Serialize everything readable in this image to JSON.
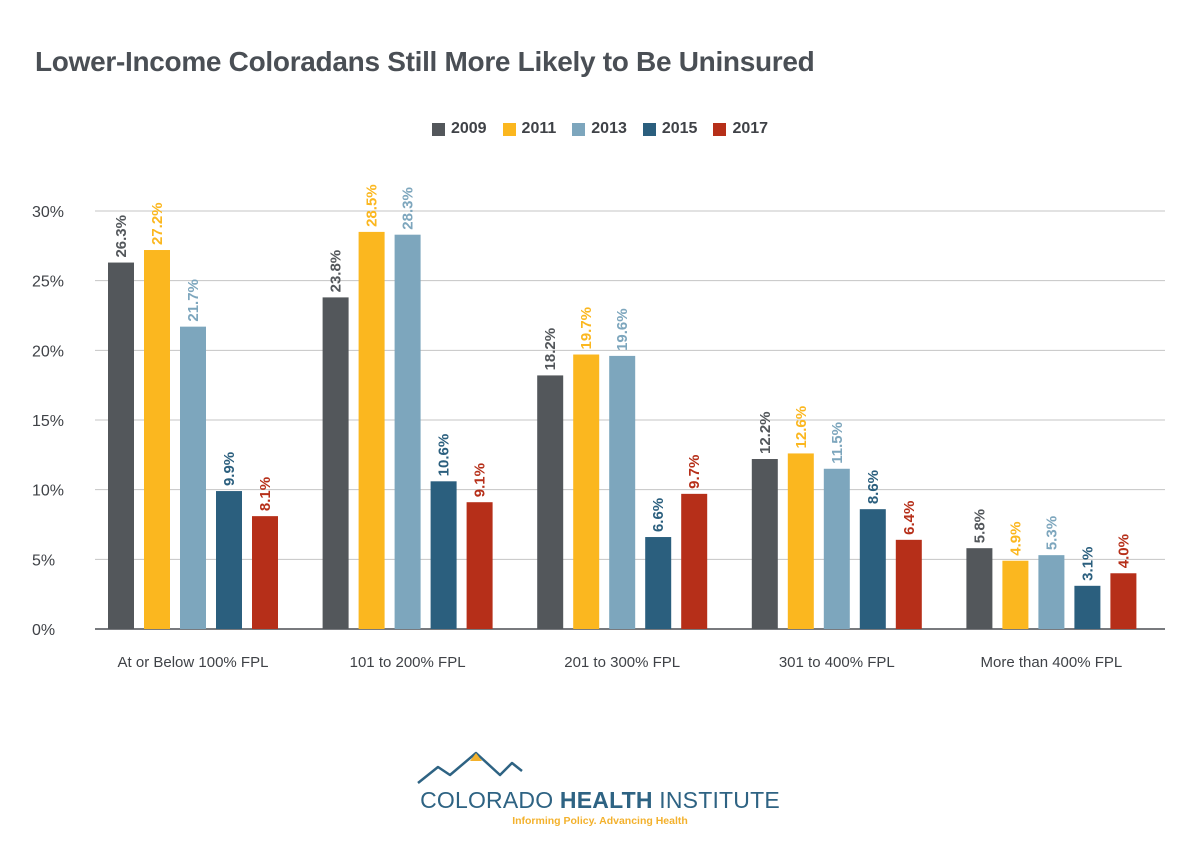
{
  "chart_data": {
    "type": "bar",
    "title": "Lower-Income Coloradans Still More Likely to Be Uninsured",
    "categories": [
      "At or Below 100% FPL",
      "101 to 200% FPL",
      "201 to 300% FPL",
      "301 to 400% FPL",
      "More than 400% FPL"
    ],
    "series": [
      {
        "name": "2009",
        "color": "#53575b",
        "values": [
          26.3,
          23.8,
          18.2,
          12.2,
          5.8
        ],
        "labels": [
          "26.3%",
          "23.8%",
          "18.2%",
          "12.2%",
          "5.8%"
        ]
      },
      {
        "name": "2011",
        "color": "#fbb71f",
        "values": [
          27.2,
          28.5,
          19.7,
          12.6,
          4.9
        ],
        "labels": [
          "27.2%",
          "28.5%",
          "19.7%",
          "12.6%",
          "4.9%"
        ]
      },
      {
        "name": "2013",
        "color": "#7da6bd",
        "values": [
          21.7,
          28.3,
          19.6,
          11.5,
          5.3
        ],
        "labels": [
          "21.7%",
          "28.3%",
          "19.6%",
          "11.5%",
          "5.3%"
        ]
      },
      {
        "name": "2015",
        "color": "#2b5f7e",
        "values": [
          9.9,
          10.6,
          6.6,
          8.6,
          3.1
        ],
        "labels": [
          "9.9%",
          "10.6%",
          "6.6%",
          "8.6%",
          "3.1%"
        ]
      },
      {
        "name": "2017",
        "color": "#b62f19",
        "values": [
          8.1,
          9.1,
          9.7,
          6.4,
          4.0
        ],
        "labels": [
          "8.1%",
          "9.1%",
          "9.7%",
          "6.4%",
          "4.0%"
        ]
      }
    ],
    "yticks": [
      "0%",
      "5%",
      "10%",
      "15%",
      "20%",
      "25%",
      "30%"
    ],
    "ylim": [
      0,
      30
    ],
    "grid": true,
    "legend_position": "top-center"
  },
  "logo": {
    "name_part1": "COLORADO",
    "name_part2": "HEALTH",
    "name_part3": "INSTITUTE",
    "tagline": "Informing Policy. Advancing Health",
    "mountain_color": "#2e6383",
    "peak_color": "#f3b12c"
  }
}
